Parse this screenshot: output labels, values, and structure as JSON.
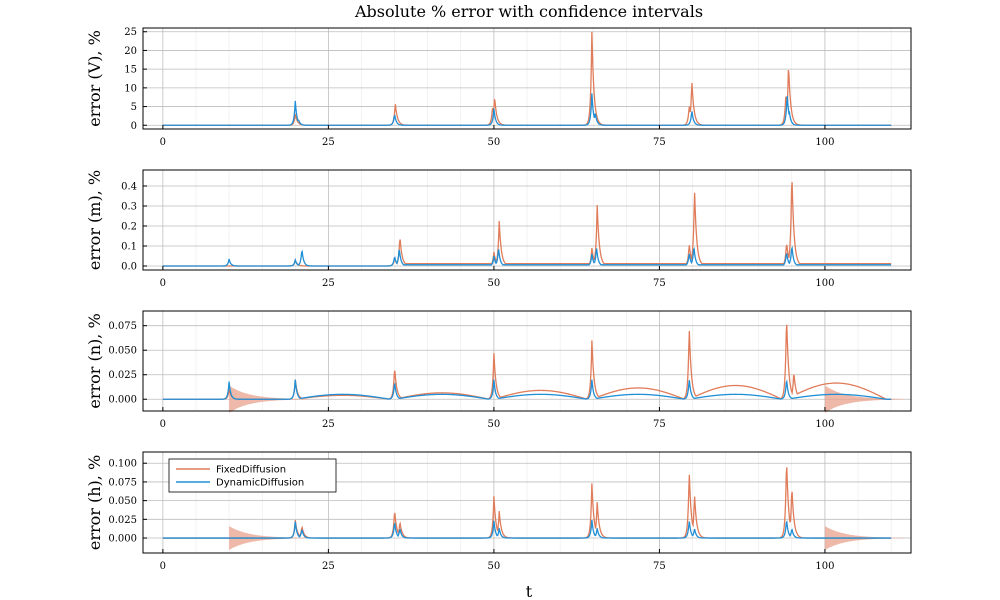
{
  "chart_data": {
    "type": "line",
    "title": "Absolute % error with confidence intervals",
    "xlabel": "t",
    "xlim": [
      -3,
      113
    ],
    "xticks": [
      0,
      25,
      50,
      75,
      100
    ],
    "grid": true,
    "legend_placement": "top-left",
    "series_colors": {
      "FixedDiffusion": "#e07c5a",
      "DynamicDiffusion": "#1f8fd6"
    },
    "panels": [
      {
        "ylabel": "error (V), %",
        "ylim": [
          -1,
          26
        ],
        "yticks": [
          0,
          5,
          10,
          15,
          20,
          25
        ],
        "ytick_labels": [
          "0",
          "5",
          "10",
          "15",
          "20",
          "25"
        ],
        "series": [
          {
            "name": "FixedDiffusion",
            "peaks": [
              [
                20.0,
                3.0
              ],
              [
                35.1,
                6.0
              ],
              [
                50.1,
                7.8
              ],
              [
                49.8,
                5.2
              ],
              [
                64.8,
                25.0
              ],
              [
                65.2,
                3.0
              ],
              [
                79.5,
                5.3
              ],
              [
                79.9,
                12.0
              ],
              [
                94.1,
                8.5
              ],
              [
                94.5,
                16.5
              ]
            ]
          },
          {
            "name": "DynamicDiffusion",
            "peaks": [
              [
                20.0,
                6.5
              ],
              [
                20.5,
                1.5
              ],
              [
                35.0,
                3.0
              ],
              [
                50.0,
                4.5
              ],
              [
                64.8,
                8.5
              ],
              [
                65.3,
                3.5
              ],
              [
                79.9,
                4.0
              ],
              [
                94.3,
                8.5
              ],
              [
                94.6,
                4.0
              ]
            ]
          }
        ]
      },
      {
        "ylabel": "error (m), %",
        "ylim": [
          -0.02,
          0.48
        ],
        "yticks": [
          0,
          0.1,
          0.2,
          0.3,
          0.4
        ],
        "ytick_labels": [
          "0.0",
          "0.1",
          "0.2",
          "0.3",
          "0.4"
        ],
        "series": [
          {
            "name": "FixedDiffusion",
            "peaks": [
              [
                20.0,
                0.03
              ],
              [
                35.0,
                0.04
              ],
              [
                35.8,
                0.15
              ],
              [
                50.0,
                0.07
              ],
              [
                50.8,
                0.225
              ],
              [
                64.8,
                0.09
              ],
              [
                65.6,
                0.305
              ],
              [
                79.5,
                0.11
              ],
              [
                80.3,
                0.39
              ],
              [
                94.2,
                0.12
              ],
              [
                95.0,
                0.475
              ]
            ]
          },
          {
            "name": "DynamicDiffusion",
            "peaks": [
              [
                10.0,
                0.035
              ],
              [
                20.0,
                0.03
              ],
              [
                21.0,
                0.085
              ],
              [
                35.0,
                0.05
              ],
              [
                35.7,
                0.09
              ],
              [
                50.0,
                0.05
              ],
              [
                50.7,
                0.09
              ],
              [
                64.8,
                0.06
              ],
              [
                65.5,
                0.095
              ],
              [
                79.5,
                0.065
              ],
              [
                80.2,
                0.1
              ],
              [
                94.2,
                0.07
              ],
              [
                95.0,
                0.105
              ]
            ]
          }
        ]
      },
      {
        "ylabel": "error (n), %",
        "ylim": [
          -0.012,
          0.09
        ],
        "yticks": [
          0,
          0.025,
          0.05,
          0.075
        ],
        "ytick_labels": [
          "0.000",
          "0.025",
          "0.050",
          "0.075"
        ],
        "series": [
          {
            "name": "FixedDiffusion",
            "peaks": [
              [
                10.0,
                0.01
              ],
              [
                20.0,
                0.02
              ],
              [
                35.0,
                0.033
              ],
              [
                50.0,
                0.047
              ],
              [
                64.8,
                0.06
              ],
              [
                79.5,
                0.074
              ],
              [
                94.2,
                0.086
              ],
              [
                95.3,
                0.028
              ]
            ]
          },
          {
            "name": "DynamicDiffusion",
            "peaks": [
              [
                10.0,
                0.018
              ],
              [
                20.0,
                0.02
              ],
              [
                35.0,
                0.018
              ],
              [
                50.0,
                0.02
              ],
              [
                64.8,
                0.02
              ],
              [
                79.5,
                0.021
              ],
              [
                94.2,
                0.021
              ]
            ]
          }
        ]
      },
      {
        "ylabel": "error (h), %",
        "ylim": [
          -0.02,
          0.115
        ],
        "yticks": [
          0,
          0.025,
          0.05,
          0.075,
          0.1
        ],
        "ytick_labels": [
          "0.000",
          "0.025",
          "0.050",
          "0.075",
          "0.100"
        ],
        "series": [
          {
            "name": "FixedDiffusion",
            "peaks": [
              [
                20.0,
                0.024
              ],
              [
                21.0,
                0.016
              ],
              [
                35.0,
                0.038
              ],
              [
                35.8,
                0.022
              ],
              [
                50.0,
                0.056
              ],
              [
                50.8,
                0.036
              ],
              [
                64.8,
                0.073
              ],
              [
                65.6,
                0.048
              ],
              [
                79.5,
                0.09
              ],
              [
                80.3,
                0.059
              ],
              [
                94.2,
                0.107
              ],
              [
                95.0,
                0.07
              ]
            ]
          },
          {
            "name": "DynamicDiffusion",
            "peaks": [
              [
                20.0,
                0.022
              ],
              [
                21.0,
                0.012
              ],
              [
                35.0,
                0.022
              ],
              [
                35.8,
                0.013
              ],
              [
                50.0,
                0.023
              ],
              [
                50.8,
                0.013
              ],
              [
                64.8,
                0.024
              ],
              [
                65.6,
                0.013
              ],
              [
                79.5,
                0.024
              ],
              [
                80.3,
                0.013
              ],
              [
                94.2,
                0.025
              ],
              [
                95.0,
                0.013
              ]
            ]
          }
        ]
      }
    ],
    "legend": [
      {
        "name": "FixedDiffusion"
      },
      {
        "name": "DynamicDiffusion"
      }
    ]
  }
}
